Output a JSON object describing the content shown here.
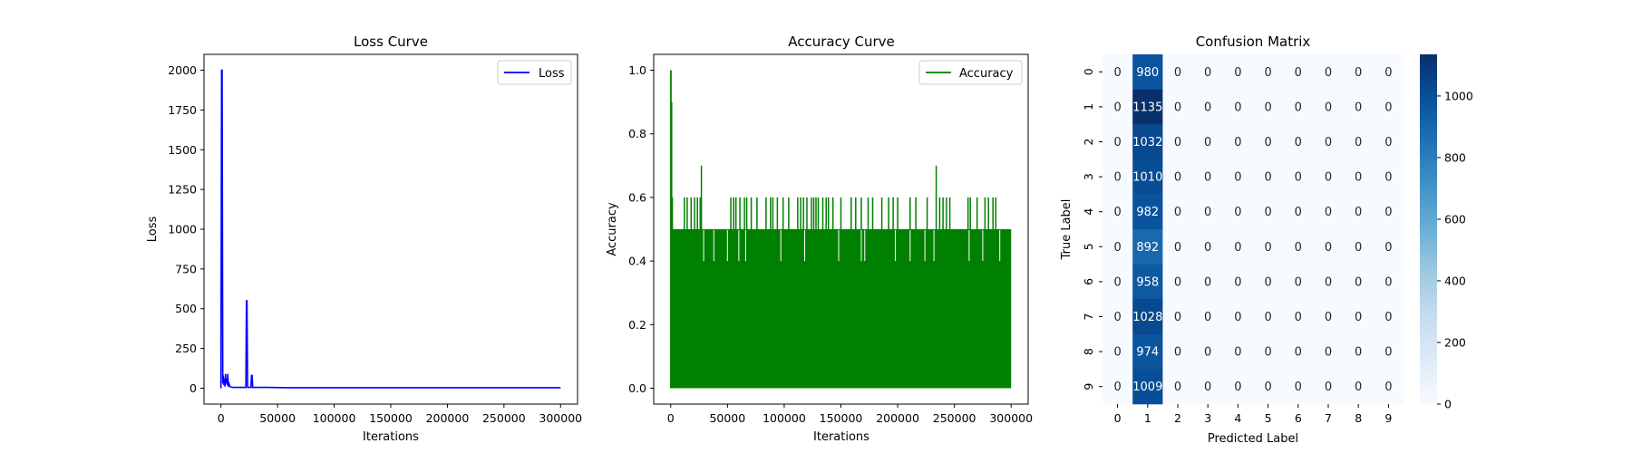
{
  "chart_data": [
    {
      "type": "line",
      "title": "Loss Curve",
      "xlabel": "Iterations",
      "ylabel": "Loss",
      "xlim": [
        -15000,
        315000
      ],
      "ylim": [
        -100,
        2100
      ],
      "xticks": [
        0,
        50000,
        100000,
        150000,
        200000,
        250000,
        300000
      ],
      "yticks": [
        0,
        250,
        500,
        750,
        1000,
        1250,
        1500,
        1750,
        2000
      ],
      "legend": "top-right",
      "grid": false,
      "series": [
        {
          "name": "Loss",
          "color": "#0000ff",
          "x": [
            0,
            500,
            1000,
            1300,
            1600,
            2000,
            2500,
            3000,
            3500,
            4000,
            4500,
            5000,
            5500,
            6000,
            6500,
            7000,
            8000,
            10000,
            15000,
            20000,
            22000,
            22500,
            23000,
            23500,
            25000,
            26500,
            27000,
            27500,
            28000,
            30000,
            40000,
            60000,
            100000,
            150000,
            180000,
            200000,
            250000,
            300000
          ],
          "y": [
            0,
            2000,
            2000,
            900,
            30,
            80,
            20,
            60,
            10,
            90,
            30,
            60,
            20,
            90,
            10,
            30,
            10,
            5,
            5,
            5,
            5,
            550,
            550,
            5,
            5,
            5,
            80,
            80,
            5,
            5,
            5,
            3,
            3,
            3,
            3,
            3,
            3,
            3
          ]
        }
      ]
    },
    {
      "type": "line",
      "title": "Accuracy Curve",
      "xlabel": "Iterations",
      "ylabel": "Accuracy",
      "xlim": [
        -15000,
        315000
      ],
      "ylim": [
        -0.05,
        1.05
      ],
      "xticks": [
        0,
        50000,
        100000,
        150000,
        200000,
        250000,
        300000
      ],
      "yticks": [
        0.0,
        0.2,
        0.4,
        0.6,
        0.8,
        1.0
      ],
      "legend": "top-right",
      "grid": false,
      "series": [
        {
          "name": "Accuracy",
          "color": "#008000",
          "band_low": 0.0,
          "band_high": 0.5,
          "x_range": [
            0,
            300000
          ],
          "early_spikes": [
            [
              0,
              1.0
            ],
            [
              300,
              1.0
            ],
            [
              800,
              0.9
            ],
            [
              1500,
              0.6
            ]
          ],
          "spikes_060": [
            12000,
            14500,
            18000,
            21000,
            23500,
            26000,
            53000,
            55500,
            57500,
            61000,
            65000,
            67000,
            71000,
            76000,
            84000,
            88000,
            90000,
            94000,
            99000,
            104000,
            112000,
            114500,
            117000,
            120000,
            124000,
            126000,
            128000,
            130000,
            134000,
            137000,
            139000,
            143000,
            150000,
            159000,
            163000,
            168000,
            174000,
            178000,
            186000,
            192000,
            196000,
            200000,
            211000,
            216000,
            226000,
            237000,
            240000,
            243000,
            246000,
            262000,
            264000,
            270000,
            277000,
            280000,
            284000,
            286500
          ],
          "spikes_070": [
            27000,
            234000
          ],
          "dips_040": [
            29000,
            38000,
            50000,
            60000,
            66000,
            97000,
            118000,
            148000,
            168000,
            171000,
            198000,
            211000,
            224000,
            232000,
            263000,
            275000,
            290000
          ]
        }
      ]
    },
    {
      "type": "heatmap",
      "title": "Confusion Matrix",
      "xlabel": "Predicted Label",
      "ylabel": "True Label",
      "x_categories": [
        "0",
        "1",
        "2",
        "3",
        "4",
        "5",
        "6",
        "7",
        "8",
        "9"
      ],
      "y_categories": [
        "0",
        "1",
        "2",
        "3",
        "4",
        "5",
        "6",
        "7",
        "8",
        "9"
      ],
      "colormap": "Blues",
      "vmin": 0,
      "vmax": 1135,
      "colorbar_ticks": [
        0,
        200,
        400,
        600,
        800,
        1000
      ],
      "values": [
        [
          0,
          980,
          0,
          0,
          0,
          0,
          0,
          0,
          0,
          0
        ],
        [
          0,
          1135,
          0,
          0,
          0,
          0,
          0,
          0,
          0,
          0
        ],
        [
          0,
          1032,
          0,
          0,
          0,
          0,
          0,
          0,
          0,
          0
        ],
        [
          0,
          1010,
          0,
          0,
          0,
          0,
          0,
          0,
          0,
          0
        ],
        [
          0,
          982,
          0,
          0,
          0,
          0,
          0,
          0,
          0,
          0
        ],
        [
          0,
          892,
          0,
          0,
          0,
          0,
          0,
          0,
          0,
          0
        ],
        [
          0,
          958,
          0,
          0,
          0,
          0,
          0,
          0,
          0,
          0
        ],
        [
          0,
          1028,
          0,
          0,
          0,
          0,
          0,
          0,
          0,
          0
        ],
        [
          0,
          974,
          0,
          0,
          0,
          0,
          0,
          0,
          0,
          0
        ],
        [
          0,
          1009,
          0,
          0,
          0,
          0,
          0,
          0,
          0,
          0
        ]
      ]
    }
  ]
}
